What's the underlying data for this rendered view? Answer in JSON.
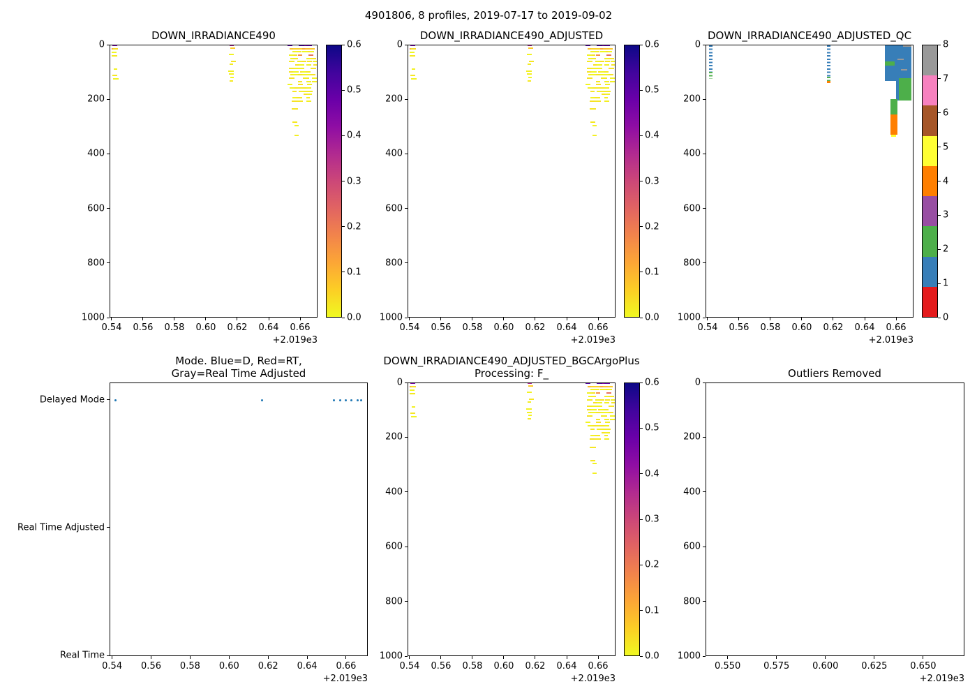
{
  "suptitle": "4901806, 8 profiles, 2019-07-17 to 2019-09-02",
  "colors": {
    "background": "#ffffff",
    "spine": "#000000",
    "mode_dot_blue": "#1f77b4",
    "qc_palette": [
      "#e41a1c",
      "#377eb8",
      "#4daf4a",
      "#984ea3",
      "#ff7f00",
      "#ffff33",
      "#a65628",
      "#f781bf",
      "#999999"
    ],
    "plasma": [
      [
        0.0,
        "#0d0887"
      ],
      [
        0.1,
        "#41049d"
      ],
      [
        0.2,
        "#6a00a8"
      ],
      [
        0.3,
        "#8f0da4"
      ],
      [
        0.4,
        "#b12a90"
      ],
      [
        0.5,
        "#cc4778"
      ],
      [
        0.6,
        "#e16462"
      ],
      [
        0.7,
        "#f2844b"
      ],
      [
        0.8,
        "#fca636"
      ],
      [
        0.9,
        "#fcce25"
      ],
      [
        1.0,
        "#f0f921"
      ]
    ]
  },
  "chart_data": [
    {
      "id": "irr",
      "type": "heatmap",
      "title": "DOWN_IRRADIANCE490",
      "xlim": [
        0.5387,
        0.6711
      ],
      "ylim": [
        0,
        1000
      ],
      "x_offset": "+2.019e3",
      "xticks": [
        {
          "v": 0.54,
          "label": "0.54"
        },
        {
          "v": 0.56,
          "label": "0.56"
        },
        {
          "v": 0.58,
          "label": "0.58"
        },
        {
          "v": 0.6,
          "label": "0.60"
        },
        {
          "v": 0.62,
          "label": "0.62"
        },
        {
          "v": 0.64,
          "label": "0.64"
        },
        {
          "v": 0.66,
          "label": "0.66"
        }
      ],
      "yticks": [
        {
          "v": 0,
          "label": "0"
        },
        {
          "v": 200,
          "label": "200"
        },
        {
          "v": 400,
          "label": "400"
        },
        {
          "v": 600,
          "label": "600"
        },
        {
          "v": 800,
          "label": "800"
        },
        {
          "v": 1000,
          "label": "1000"
        }
      ],
      "vmin": 0,
      "vmax": 0.6,
      "profiles": [
        {
          "x": 0.5415,
          "surface_value": 0.45,
          "tau": 5,
          "seed": 11,
          "segments": [
            {
              "d0": 0,
              "d1": 14,
              "density": 0.95
            },
            {
              "d0": 14,
              "d1": 122,
              "density": 0.6
            }
          ]
        },
        {
          "x": 0.6165,
          "surface_value": 0.38,
          "tau": 5,
          "seed": 22,
          "segments": [
            {
              "d0": 0,
              "d1": 10,
              "density": 0.95
            },
            {
              "d0": 10,
              "d1": 132,
              "density": 0.55
            }
          ]
        },
        {
          "x": 0.654,
          "surface_value": 0.5,
          "tau": 6,
          "seed": 33,
          "segments": [
            {
              "d0": 0,
              "d1": 205,
              "density": 0.7
            }
          ]
        },
        {
          "x": 0.657,
          "surface_value": 0.55,
          "tau": 6,
          "seed": 44,
          "segments": [
            {
              "d0": 0,
              "d1": 210,
              "density": 0.7
            },
            {
              "d0": 210,
              "d1": 335,
              "density": 0.5
            }
          ]
        },
        {
          "x": 0.66,
          "surface_value": 0.5,
          "tau": 6,
          "seed": 55,
          "segments": [
            {
              "d0": 0,
              "d1": 205,
              "density": 0.7
            }
          ]
        },
        {
          "x": 0.663,
          "surface_value": 0.45,
          "tau": 6,
          "seed": 66,
          "segments": [
            {
              "d0": 0,
              "d1": 185,
              "density": 0.7
            }
          ]
        },
        {
          "x": 0.6655,
          "surface_value": 0.5,
          "tau": 6,
          "seed": 77,
          "segments": [
            {
              "d0": 0,
              "d1": 205,
              "density": 0.7
            }
          ]
        },
        {
          "x": 0.668,
          "surface_value": 0.55,
          "tau": 6,
          "seed": 88,
          "segments": [
            {
              "d0": 0,
              "d1": 155,
              "density": 0.75
            }
          ]
        }
      ],
      "colorbar": {
        "kind": "gradient",
        "vmin": 0,
        "vmax": 0.6,
        "ticks": [
          {
            "v": 0,
            "label": "0.0"
          },
          {
            "v": 0.1,
            "label": "0.1"
          },
          {
            "v": 0.2,
            "label": "0.2"
          },
          {
            "v": 0.3,
            "label": "0.3"
          },
          {
            "v": 0.4,
            "label": "0.4"
          },
          {
            "v": 0.5,
            "label": "0.5"
          },
          {
            "v": 0.6,
            "label": "0.6"
          }
        ]
      }
    },
    {
      "id": "adj",
      "type": "heatmap",
      "title": "DOWN_IRRADIANCE490_ADJUSTED",
      "xlim": [
        0.5387,
        0.6711
      ],
      "ylim": [
        0,
        1000
      ],
      "x_offset": "+2.019e3",
      "xticks": [
        {
          "v": 0.54,
          "label": "0.54"
        },
        {
          "v": 0.56,
          "label": "0.56"
        },
        {
          "v": 0.58,
          "label": "0.58"
        },
        {
          "v": 0.6,
          "label": "0.60"
        },
        {
          "v": 0.62,
          "label": "0.62"
        },
        {
          "v": 0.64,
          "label": "0.64"
        },
        {
          "v": 0.66,
          "label": "0.66"
        }
      ],
      "yticks": [
        {
          "v": 0,
          "label": "0"
        },
        {
          "v": 200,
          "label": "200"
        },
        {
          "v": 400,
          "label": "400"
        },
        {
          "v": 600,
          "label": "600"
        },
        {
          "v": 800,
          "label": "800"
        },
        {
          "v": 1000,
          "label": "1000"
        }
      ],
      "vmin": 0,
      "vmax": 0.6,
      "profiles_same_as": "irr",
      "colorbar": {
        "kind": "gradient",
        "vmin": 0,
        "vmax": 0.6,
        "ticks": [
          {
            "v": 0,
            "label": "0.0"
          },
          {
            "v": 0.1,
            "label": "0.1"
          },
          {
            "v": 0.2,
            "label": "0.2"
          },
          {
            "v": 0.3,
            "label": "0.3"
          },
          {
            "v": 0.4,
            "label": "0.4"
          },
          {
            "v": 0.5,
            "label": "0.5"
          },
          {
            "v": 0.6,
            "label": "0.6"
          }
        ]
      }
    },
    {
      "id": "qc",
      "type": "qc-heatmap",
      "title": "DOWN_IRRADIANCE490_ADJUSTED_QC",
      "xlim": [
        0.5387,
        0.6711
      ],
      "ylim": [
        0,
        1000
      ],
      "x_offset": "+2.019e3",
      "xticks": [
        {
          "v": 0.54,
          "label": "0.54"
        },
        {
          "v": 0.56,
          "label": "0.56"
        },
        {
          "v": 0.58,
          "label": "0.58"
        },
        {
          "v": 0.6,
          "label": "0.60"
        },
        {
          "v": 0.62,
          "label": "0.62"
        },
        {
          "v": 0.64,
          "label": "0.64"
        },
        {
          "v": 0.66,
          "label": "0.66"
        }
      ],
      "yticks": [
        {
          "v": 0,
          "label": "0"
        },
        {
          "v": 200,
          "label": "200"
        },
        {
          "v": 400,
          "label": "400"
        },
        {
          "v": 600,
          "label": "600"
        },
        {
          "v": 800,
          "label": "800"
        },
        {
          "v": 1000,
          "label": "1000"
        }
      ],
      "blocks": [
        {
          "x0": 0.5405,
          "x1": 0.5428,
          "d0": 0,
          "d1": 96,
          "qc": 1,
          "striped": true
        },
        {
          "x0": 0.5405,
          "x1": 0.5428,
          "d0": 96,
          "d1": 122,
          "qc": 2,
          "striped": true
        },
        {
          "x0": 0.6154,
          "x1": 0.6177,
          "d0": 0,
          "d1": 114,
          "qc": 1,
          "striped": true
        },
        {
          "x0": 0.6154,
          "x1": 0.6177,
          "d0": 114,
          "d1": 130,
          "qc": 2,
          "striped": true
        },
        {
          "x0": 0.6154,
          "x1": 0.6177,
          "d0": 130,
          "d1": 137,
          "qc": 4,
          "striped": false
        },
        {
          "x0": 0.6525,
          "x1": 0.6695,
          "d0": 0,
          "d1": 130,
          "qc": 1,
          "striped": false
        },
        {
          "x0": 0.6595,
          "x1": 0.6695,
          "d0": 130,
          "d1": 202,
          "qc": 1,
          "striped": false
        },
        {
          "x0": 0.6525,
          "x1": 0.6585,
          "d0": 58,
          "d1": 74,
          "qc": 2,
          "striped": false
        },
        {
          "x0": 0.6615,
          "x1": 0.6695,
          "d0": 120,
          "d1": 202,
          "qc": 2,
          "striped": false
        },
        {
          "x0": 0.664,
          "x1": 0.6695,
          "d0": 0,
          "d1": 6,
          "qc": 8,
          "striped": false
        },
        {
          "x0": 0.6605,
          "x1": 0.6645,
          "d0": 48,
          "d1": 53,
          "qc": 8,
          "striped": false
        },
        {
          "x0": 0.6625,
          "x1": 0.6668,
          "d0": 88,
          "d1": 93,
          "qc": 8,
          "striped": false
        },
        {
          "x0": 0.656,
          "x1": 0.6605,
          "d0": 196,
          "d1": 252,
          "qc": 2,
          "striped": false
        },
        {
          "x0": 0.656,
          "x1": 0.6605,
          "d0": 252,
          "d1": 328,
          "qc": 4,
          "striped": false
        },
        {
          "x0": 0.6565,
          "x1": 0.6595,
          "d0": 328,
          "d1": 336,
          "qc": 5,
          "striped": false
        }
      ],
      "colorbar": {
        "kind": "discrete",
        "vmin": 0,
        "vmax": 8,
        "ticks": [
          {
            "v": 0,
            "label": "0"
          },
          {
            "v": 1,
            "label": "1"
          },
          {
            "v": 2,
            "label": "2"
          },
          {
            "v": 3,
            "label": "3"
          },
          {
            "v": 4,
            "label": "4"
          },
          {
            "v": 5,
            "label": "5"
          },
          {
            "v": 6,
            "label": "6"
          },
          {
            "v": 7,
            "label": "7"
          },
          {
            "v": 8,
            "label": "8"
          }
        ]
      }
    },
    {
      "id": "mode",
      "type": "scatter",
      "title": "Mode. Blue=D, Red=RT,\nGray=Real Time Adjusted",
      "xlim": [
        0.5387,
        0.6711
      ],
      "ylim": [
        2.135,
        -0.005
      ],
      "x_offset": "+2.019e3",
      "xticks": [
        {
          "v": 0.54,
          "label": "0.54"
        },
        {
          "v": 0.56,
          "label": "0.56"
        },
        {
          "v": 0.58,
          "label": "0.58"
        },
        {
          "v": 0.6,
          "label": "0.60"
        },
        {
          "v": 0.62,
          "label": "0.62"
        },
        {
          "v": 0.64,
          "label": "0.64"
        },
        {
          "v": 0.66,
          "label": "0.66"
        }
      ],
      "yticks": [
        {
          "v": 2,
          "label": "Delayed Mode"
        },
        {
          "v": 1,
          "label": "Real Time Adjusted"
        },
        {
          "v": 0,
          "label": "Real Time"
        }
      ],
      "mode_colors": {
        "D": "#1f77b4",
        "RT": "#d62728",
        "RTA": "#7f7f7f"
      },
      "dots": [
        {
          "x": 0.5415,
          "mode": "D"
        },
        {
          "x": 0.6165,
          "mode": "D"
        },
        {
          "x": 0.6535,
          "mode": "D"
        },
        {
          "x": 0.6565,
          "mode": "D"
        },
        {
          "x": 0.6595,
          "mode": "D"
        },
        {
          "x": 0.6625,
          "mode": "D"
        },
        {
          "x": 0.6655,
          "mode": "D"
        },
        {
          "x": 0.6675,
          "mode": "D"
        }
      ]
    },
    {
      "id": "bgc",
      "type": "heatmap",
      "title": "DOWN_IRRADIANCE490_ADJUSTED_BGCArgoPlus\nProcessing: F_",
      "xlim": [
        0.5387,
        0.6711
      ],
      "ylim": [
        0,
        1000
      ],
      "x_offset": "+2.019e3",
      "xticks": [
        {
          "v": 0.54,
          "label": "0.54"
        },
        {
          "v": 0.56,
          "label": "0.56"
        },
        {
          "v": 0.58,
          "label": "0.58"
        },
        {
          "v": 0.6,
          "label": "0.60"
        },
        {
          "v": 0.62,
          "label": "0.62"
        },
        {
          "v": 0.64,
          "label": "0.64"
        },
        {
          "v": 0.66,
          "label": "0.66"
        }
      ],
      "yticks": [
        {
          "v": 0,
          "label": "0"
        },
        {
          "v": 200,
          "label": "200"
        },
        {
          "v": 400,
          "label": "400"
        },
        {
          "v": 600,
          "label": "600"
        },
        {
          "v": 800,
          "label": "800"
        },
        {
          "v": 1000,
          "label": "1000"
        }
      ],
      "vmin": 0,
      "vmax": 0.6,
      "profiles_same_as": "irr",
      "colorbar": {
        "kind": "gradient",
        "vmin": 0,
        "vmax": 0.6,
        "ticks": [
          {
            "v": 0,
            "label": "0.0"
          },
          {
            "v": 0.1,
            "label": "0.1"
          },
          {
            "v": 0.2,
            "label": "0.2"
          },
          {
            "v": 0.3,
            "label": "0.3"
          },
          {
            "v": 0.4,
            "label": "0.4"
          },
          {
            "v": 0.5,
            "label": "0.5"
          },
          {
            "v": 0.6,
            "label": "0.6"
          }
        ]
      }
    },
    {
      "id": "out",
      "type": "empty",
      "title": "Outliers Removed",
      "xlim": [
        0.5387,
        0.6711
      ],
      "ylim": [
        0,
        1000
      ],
      "x_offset": "+2.019e3",
      "xticks": [
        {
          "v": 0.55,
          "label": "0.550"
        },
        {
          "v": 0.575,
          "label": "0.575"
        },
        {
          "v": 0.6,
          "label": "0.600"
        },
        {
          "v": 0.625,
          "label": "0.625"
        },
        {
          "v": 0.65,
          "label": "0.650"
        }
      ],
      "yticks": [
        {
          "v": 0,
          "label": "0"
        },
        {
          "v": 200,
          "label": "200"
        },
        {
          "v": 400,
          "label": "400"
        },
        {
          "v": 600,
          "label": "600"
        },
        {
          "v": 800,
          "label": "800"
        },
        {
          "v": 1000,
          "label": "1000"
        }
      ]
    }
  ]
}
